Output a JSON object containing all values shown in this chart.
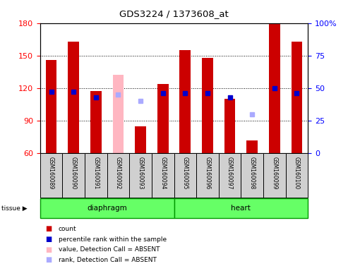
{
  "title": "GDS3224 / 1373608_at",
  "samples": [
    "GSM160089",
    "GSM160090",
    "GSM160091",
    "GSM160092",
    "GSM160093",
    "GSM160094",
    "GSM160095",
    "GSM160096",
    "GSM160097",
    "GSM160098",
    "GSM160099",
    "GSM160100"
  ],
  "count_values": [
    146,
    163,
    117,
    null,
    85,
    124,
    155,
    148,
    110,
    72,
    180,
    163
  ],
  "count_absent": [
    null,
    null,
    null,
    132,
    null,
    null,
    null,
    null,
    null,
    null,
    null,
    null
  ],
  "percentile_present": [
    47,
    47,
    43,
    null,
    null,
    46,
    46,
    46,
    43,
    null,
    50,
    46
  ],
  "percentile_absent": [
    null,
    null,
    null,
    45,
    40,
    null,
    null,
    null,
    null,
    30,
    null,
    null
  ],
  "ylim_left": [
    60,
    180
  ],
  "ylim_right": [
    0,
    100
  ],
  "yticks_left": [
    60,
    90,
    120,
    150,
    180
  ],
  "yticks_right": [
    0,
    25,
    50,
    75,
    100
  ],
  "bar_color_red": "#cc0000",
  "bar_color_pink": "#ffb6c1",
  "dot_color_blue": "#0000cc",
  "dot_color_lightblue": "#aaaaff",
  "tissue_groups": [
    {
      "label": "diaphragm",
      "start": 0,
      "end": 6
    },
    {
      "label": "heart",
      "start": 6,
      "end": 12
    }
  ],
  "tissue_color": "#66ff66",
  "tissue_border_color": "#009900",
  "bg_color": "#ffffff",
  "bar_width": 0.5,
  "legend_items": [
    {
      "label": "count",
      "color": "#cc0000"
    },
    {
      "label": "percentile rank within the sample",
      "color": "#0000cc"
    },
    {
      "label": "value, Detection Call = ABSENT",
      "color": "#ffb6c1"
    },
    {
      "label": "rank, Detection Call = ABSENT",
      "color": "#aaaaff"
    }
  ]
}
